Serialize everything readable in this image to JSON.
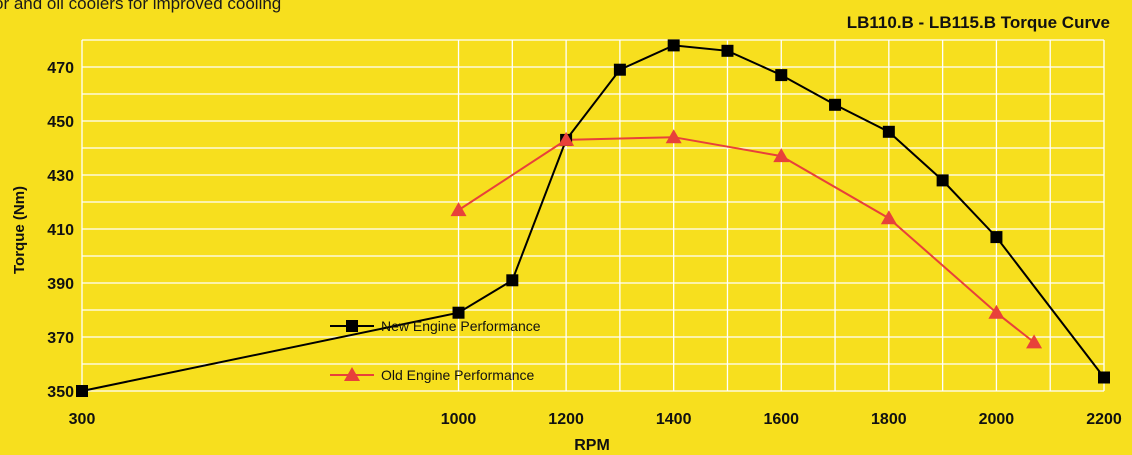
{
  "header_text": "or and oil coolers for improved cooling",
  "chart_data": {
    "type": "line",
    "title": "LB110.B - LB115.B Torque Curve",
    "xlabel": "RPM",
    "ylabel": "Torque (Nm)",
    "xlim": [
      300,
      2200
    ],
    "ylim": [
      350,
      480
    ],
    "x_ticks": [
      "300",
      "1000",
      "1200",
      "1400",
      "1600",
      "1800",
      "2000",
      "2200"
    ],
    "y_ticks": [
      "350",
      "370",
      "390",
      "410",
      "430",
      "450",
      "470"
    ],
    "x_grid": [
      300,
      1000,
      1100,
      1200,
      1300,
      1400,
      1500,
      1600,
      1700,
      1800,
      1900,
      2000,
      2100,
      2200
    ],
    "y_grid": [
      350,
      360,
      370,
      380,
      390,
      400,
      410,
      420,
      430,
      440,
      450,
      460,
      470,
      480
    ],
    "grid": true,
    "legend_position": "lower-center",
    "series": [
      {
        "name": "New Engine Performance",
        "color": "#000000",
        "marker": "square",
        "x": [
          300,
          1000,
          1100,
          1200,
          1300,
          1400,
          1500,
          1600,
          1700,
          1800,
          1900,
          2000,
          2200
        ],
        "y": [
          350,
          379,
          391,
          443,
          469,
          478,
          476,
          467,
          456,
          446,
          428,
          407,
          355
        ]
      },
      {
        "name": "Old Engine Performance",
        "color": "#e8413a",
        "marker": "triangle",
        "x": [
          1000,
          1200,
          1400,
          1600,
          1800,
          2000,
          2070
        ],
        "y": [
          417,
          443,
          444,
          437,
          414,
          379,
          368
        ]
      }
    ]
  }
}
